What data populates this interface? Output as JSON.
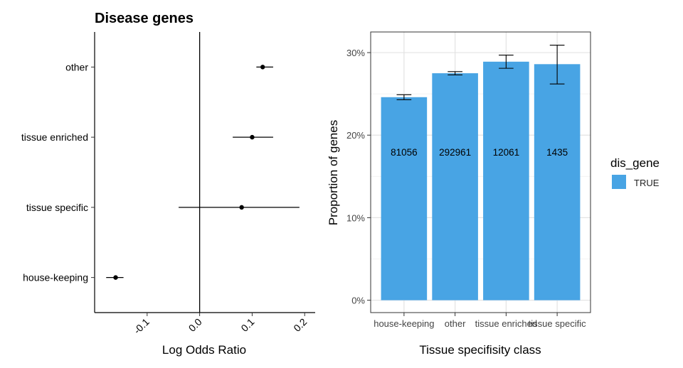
{
  "chart_data": [
    {
      "type": "scatter",
      "title": "Disease genes",
      "xlabel": "Log Odds Ratio",
      "ylabel": "",
      "xlim": [
        -0.2,
        0.22
      ],
      "x_ticks": [
        -0.1,
        0.0,
        0.1,
        0.2
      ],
      "x_tick_labels": [
        "-0.1",
        "0.0",
        "0.1",
        "0.2"
      ],
      "vline_at": 0.0,
      "categories": [
        "other",
        "tissue enriched",
        "tissue specific",
        "house-keeping"
      ],
      "values": [
        0.12,
        0.1,
        0.08,
        -0.16
      ],
      "ci_low": [
        0.108,
        0.063,
        -0.04,
        -0.178
      ],
      "ci_high": [
        0.14,
        0.14,
        0.19,
        -0.145
      ],
      "grid": false
    },
    {
      "type": "bar",
      "xlabel": "Tissue specifisity class",
      "ylabel": "Proportion of genes",
      "categories": [
        "house-keeping",
        "other",
        "tissue enriched",
        "tissue specific"
      ],
      "values": [
        24.6,
        27.5,
        28.9,
        28.6
      ],
      "err_low": [
        24.3,
        27.3,
        28.1,
        26.2
      ],
      "err_high": [
        24.9,
        27.7,
        29.7,
        30.9
      ],
      "bar_labels": [
        "81056",
        "292961",
        "12061",
        "1435"
      ],
      "ylim": [
        -1.5,
        32.5
      ],
      "y_ticks": [
        0,
        10,
        20,
        30
      ],
      "y_tick_labels": [
        "0%",
        "10%",
        "20%",
        "30%"
      ],
      "grid": true,
      "legend": {
        "title": "dis_gene",
        "entries": [
          "TRUE"
        ],
        "placement": "right"
      },
      "color": "#48A4E4"
    }
  ]
}
